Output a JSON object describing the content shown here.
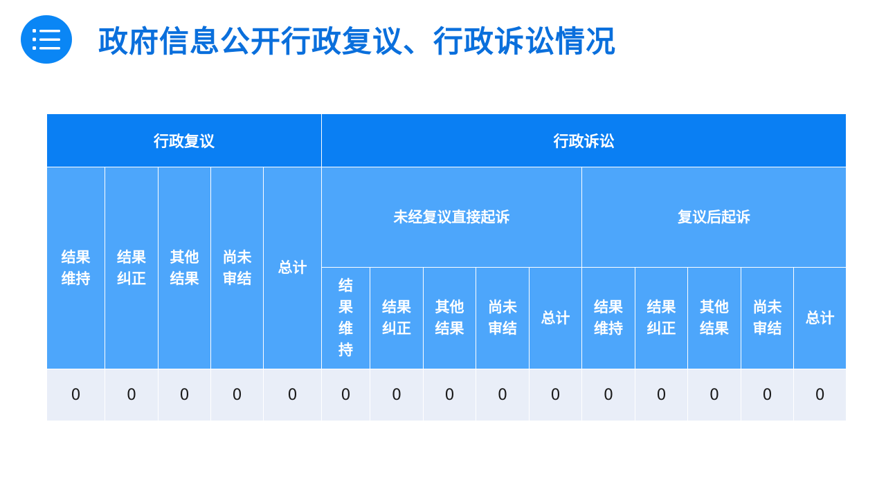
{
  "header": {
    "title": "政府信息公开行政复议、行政诉讼情况",
    "icon": "list-icon",
    "accent": "#0a86f5"
  },
  "table": {
    "admin_review": {
      "label": "行政复议",
      "columns": [
        "结果维持",
        "结果纠正",
        "其他结果",
        "尚未审结",
        "总计"
      ],
      "values": [
        "0",
        "0",
        "0",
        "0",
        "0"
      ]
    },
    "litigation": {
      "label": "行政诉讼",
      "direct": {
        "label": "未经复议直接起诉",
        "columns": [
          "结果维持",
          "结果纠正",
          "其他结果",
          "尚未审结",
          "总计"
        ],
        "values": [
          "0",
          "0",
          "0",
          "0",
          "0"
        ]
      },
      "after_review": {
        "label": "复议后起诉",
        "columns": [
          "结果维持",
          "结果纠正",
          "其他结果",
          "尚未审结",
          "总计"
        ],
        "values": [
          "0",
          "0",
          "0",
          "0",
          "0"
        ]
      }
    },
    "colors": {
      "header_dark": "#0a7ff3",
      "header_light": "#4da6fb",
      "row_bg": "#e9eef8"
    }
  }
}
